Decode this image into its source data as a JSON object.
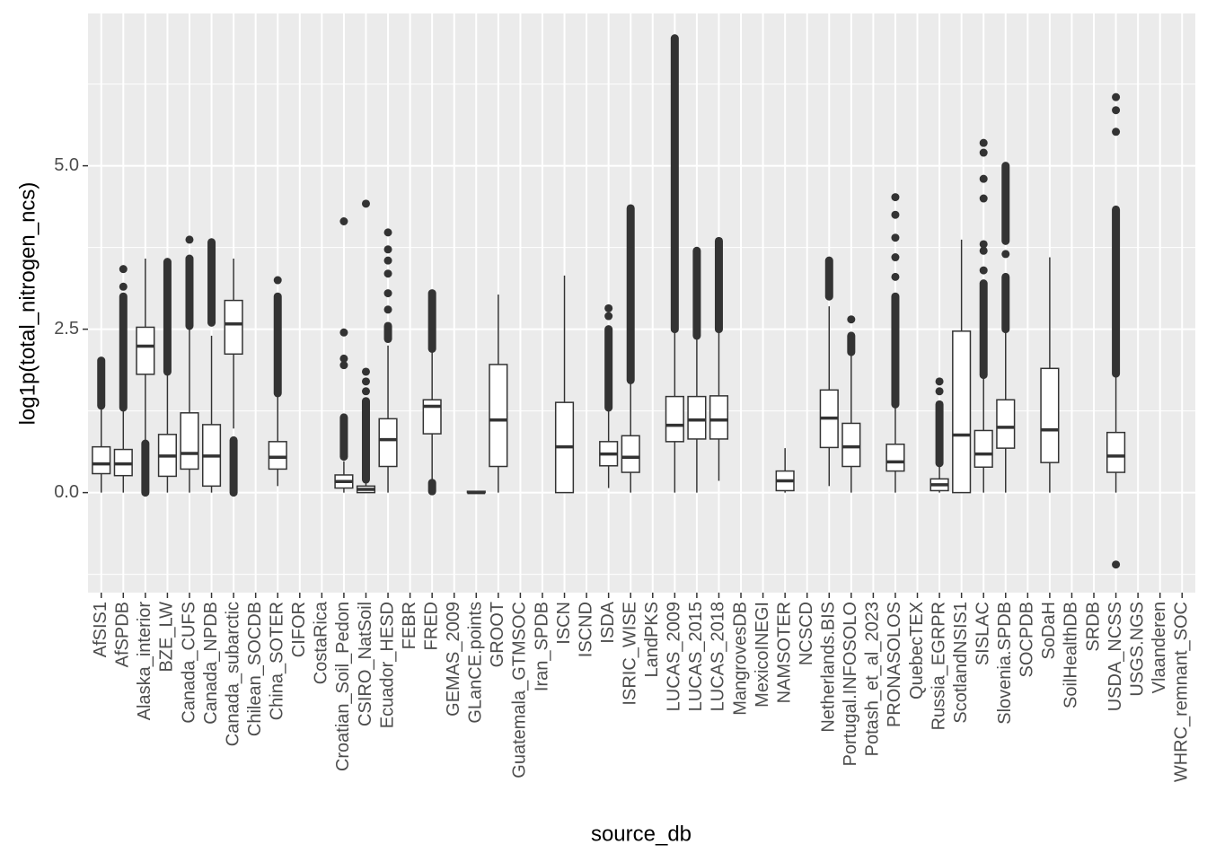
{
  "chart_data": {
    "type": "boxplot",
    "x_label": "source_db",
    "y_label": "log1p(total_nitrogen_ncs)",
    "ylim": [
      -1.53,
      7.33
    ],
    "yticks": [
      {
        "value": 0,
        "label": "0.0"
      },
      {
        "value": 2.5,
        "label": "2.5"
      },
      {
        "value": 5,
        "label": "5.0"
      }
    ],
    "grid": true,
    "color": "#333333",
    "categories": [
      "AfSIS1",
      "AfSPDB",
      "Alaska_interior",
      "BZE_LW",
      "Canada_CUFS",
      "Canada_NPDB",
      "Canada_subarctic",
      "Chilean_SOCDB",
      "China_SOTER",
      "CIFOR",
      "CostaRica",
      "Croatian_Soil_Pedon",
      "CSIRO_NatSoil",
      "Ecuador_HESD",
      "FEBR",
      "FRED",
      "GEMAS_2009",
      "GLanCE.points",
      "GROOT",
      "Guatemala_GTMSOC",
      "Iran_SPDB",
      "ISCN",
      "ISCND",
      "ISDA",
      "ISRIC_WISE",
      "LandPKS",
      "LUCAS_2009",
      "LUCAS_2015",
      "LUCAS_2018",
      "MangrovesDB",
      "MexicoINEGI",
      "NAMSOTER",
      "NCSCD",
      "Netherlands.BIS",
      "Portugal.INFOSOLO",
      "Potash_et_al_2023",
      "PRONASOLOS",
      "QuebecTEX",
      "Russia_EGRPR",
      "ScotlandNSIS1",
      "SISLAC",
      "Slovenia.SPDB",
      "SOCPDB",
      "SoDaH",
      "SoilHealthDB",
      "SRDB",
      "USDA_NCSS",
      "USGS.NGS",
      "Vlaanderen",
      "WHRC_remnant_SOC"
    ],
    "boxes": [
      {
        "low": 0,
        "q1": 0.29,
        "median": 0.44,
        "q3": 0.7,
        "high": 1.3,
        "outliers": [],
        "outlier_ranges": [
          [
            1.33,
            2.02
          ]
        ]
      },
      {
        "low": 0,
        "q1": 0.26,
        "median": 0.44,
        "q3": 0.66,
        "high": 1.3,
        "outliers": [
          3.15,
          3.42
        ],
        "outlier_ranges": [
          [
            1.3,
            3.0
          ]
        ]
      },
      {
        "low": 0.78,
        "q1": 1.81,
        "median": 2.24,
        "q3": 2.53,
        "high": 3.58,
        "outliers": [],
        "outlier_ranges": [
          [
            0,
            0.75
          ]
        ]
      },
      {
        "low": 0,
        "q1": 0.25,
        "median": 0.56,
        "q3": 0.89,
        "high": 1.8,
        "outliers": [],
        "outlier_ranges": [
          [
            1.85,
            3.53
          ]
        ]
      },
      {
        "low": 0,
        "q1": 0.36,
        "median": 0.6,
        "q3": 1.22,
        "high": 2.5,
        "outliers": [
          3.87
        ],
        "outlier_ranges": [
          [
            2.55,
            3.58
          ]
        ]
      },
      {
        "low": 0,
        "q1": 0.1,
        "median": 0.56,
        "q3": 1.04,
        "high": 2.4,
        "outliers": [],
        "outlier_ranges": [
          [
            2.6,
            3.83
          ]
        ]
      },
      {
        "low": 0.98,
        "q1": 2.12,
        "median": 2.58,
        "q3": 2.94,
        "high": 3.58,
        "outliers": [],
        "outlier_ranges": [
          [
            0,
            0.8
          ]
        ]
      },
      null,
      {
        "low": 0.1,
        "q1": 0.36,
        "median": 0.54,
        "q3": 0.78,
        "high": 1.5,
        "outliers": [
          3.25
        ],
        "outlier_ranges": [
          [
            1.52,
            3.0
          ]
        ]
      },
      null,
      null,
      {
        "low": 0,
        "q1": 0.07,
        "median": 0.17,
        "q3": 0.27,
        "high": 0.48,
        "outliers": [
          1.95,
          2.05,
          2.45,
          4.15
        ],
        "outlier_ranges": [
          [
            0.55,
            1.15
          ]
        ]
      },
      {
        "low": 0,
        "q1": 0,
        "median": 0.05,
        "q3": 0.1,
        "high": 0.22,
        "outliers": [
          1.55,
          1.7,
          1.85,
          4.42
        ],
        "outlier_ranges": [
          [
            0.2,
            1.4
          ]
        ]
      },
      {
        "low": 0,
        "q1": 0.4,
        "median": 0.81,
        "q3": 1.13,
        "high": 2.25,
        "outliers": [
          2.8,
          3.05,
          3.35,
          3.55,
          3.72,
          3.98
        ],
        "outlier_ranges": [
          [
            2.35,
            2.55
          ]
        ]
      },
      null,
      {
        "low": 0.2,
        "q1": 0.9,
        "median": 1.32,
        "q3": 1.42,
        "high": 2.15,
        "outliers": [],
        "outlier_ranges": [
          [
            0.02,
            0.15
          ],
          [
            2.2,
            3.05
          ]
        ]
      },
      null,
      {
        "low": 0,
        "q1": 0,
        "median": 0,
        "q3": 0.02,
        "high": 0.02,
        "outliers": [],
        "outlier_ranges": []
      },
      {
        "low": 0,
        "q1": 0.4,
        "median": 1.11,
        "q3": 1.96,
        "high": 3.03,
        "outliers": [],
        "outlier_ranges": []
      },
      null,
      null,
      {
        "low": 0,
        "q1": 0,
        "median": 0.7,
        "q3": 1.38,
        "high": 3.32,
        "outliers": [],
        "outlier_ranges": []
      },
      null,
      {
        "low": 0.07,
        "q1": 0.41,
        "median": 0.59,
        "q3": 0.78,
        "high": 1.28,
        "outliers": [
          2.7,
          2.82
        ],
        "outlier_ranges": [
          [
            1.3,
            2.5
          ]
        ]
      },
      {
        "low": 0,
        "q1": 0.31,
        "median": 0.54,
        "q3": 0.87,
        "high": 1.7,
        "outliers": [],
        "outlier_ranges": [
          [
            1.72,
            4.35
          ]
        ]
      },
      null,
      {
        "low": 0,
        "q1": 0.78,
        "median": 1.03,
        "q3": 1.47,
        "high": 2.5,
        "outliers": [],
        "outlier_ranges": [
          [
            2.5,
            6.95
          ]
        ]
      },
      {
        "low": 0,
        "q1": 0.82,
        "median": 1.11,
        "q3": 1.47,
        "high": 2.35,
        "outliers": [],
        "outlier_ranges": [
          [
            2.4,
            3.7
          ]
        ]
      },
      {
        "low": 0.18,
        "q1": 0.82,
        "median": 1.11,
        "q3": 1.48,
        "high": 2.45,
        "outliers": [],
        "outlier_ranges": [
          [
            2.5,
            3.85
          ]
        ]
      },
      null,
      null,
      {
        "low": 0,
        "q1": 0.03,
        "median": 0.18,
        "q3": 0.33,
        "high": 0.68,
        "outliers": [],
        "outlier_ranges": []
      },
      null,
      {
        "low": 0.1,
        "q1": 0.69,
        "median": 1.14,
        "q3": 1.57,
        "high": 2.85,
        "outliers": [],
        "outlier_ranges": [
          [
            3.0,
            3.55
          ]
        ]
      },
      {
        "low": 0,
        "q1": 0.4,
        "median": 0.7,
        "q3": 1.06,
        "high": 2.1,
        "outliers": [
          2.65
        ],
        "outlier_ranges": [
          [
            2.15,
            2.4
          ]
        ]
      },
      null,
      {
        "low": 0,
        "q1": 0.33,
        "median": 0.47,
        "q3": 0.74,
        "high": 1.3,
        "outliers": [
          3.3,
          3.6,
          3.9,
          4.25,
          4.52
        ],
        "outlier_ranges": [
          [
            1.35,
            3.0
          ]
        ]
      },
      null,
      {
        "low": 0,
        "q1": 0.03,
        "median": 0.12,
        "q3": 0.21,
        "high": 0.4,
        "outliers": [
          1.55,
          1.7
        ],
        "outlier_ranges": [
          [
            0.45,
            1.35
          ]
        ]
      },
      {
        "low": 0,
        "q1": 0,
        "median": 0.88,
        "q3": 2.47,
        "high": 3.87,
        "outliers": [],
        "outlier_ranges": []
      },
      {
        "low": 0,
        "q1": 0.39,
        "median": 0.59,
        "q3": 0.95,
        "high": 1.75,
        "outliers": [
          3.4,
          3.7,
          3.8,
          4.5,
          4.8,
          5.2,
          5.35
        ],
        "outlier_ranges": [
          [
            1.8,
            3.2
          ]
        ]
      },
      {
        "low": 0,
        "q1": 0.68,
        "median": 1.0,
        "q3": 1.42,
        "high": 2.45,
        "outliers": [
          3.65
        ],
        "outlier_ranges": [
          [
            2.5,
            3.3
          ],
          [
            3.85,
            5.0
          ]
        ]
      },
      null,
      {
        "low": 0,
        "q1": 0.46,
        "median": 0.96,
        "q3": 1.9,
        "high": 3.6,
        "outliers": [],
        "outlier_ranges": []
      },
      null,
      null,
      {
        "low": 0,
        "q1": 0.31,
        "median": 0.56,
        "q3": 0.92,
        "high": 1.8,
        "outliers": [
          5.52,
          5.85,
          6.05,
          -1.1
        ],
        "outlier_ranges": [
          [
            1.82,
            4.33
          ]
        ]
      },
      null,
      null,
      null
    ]
  }
}
